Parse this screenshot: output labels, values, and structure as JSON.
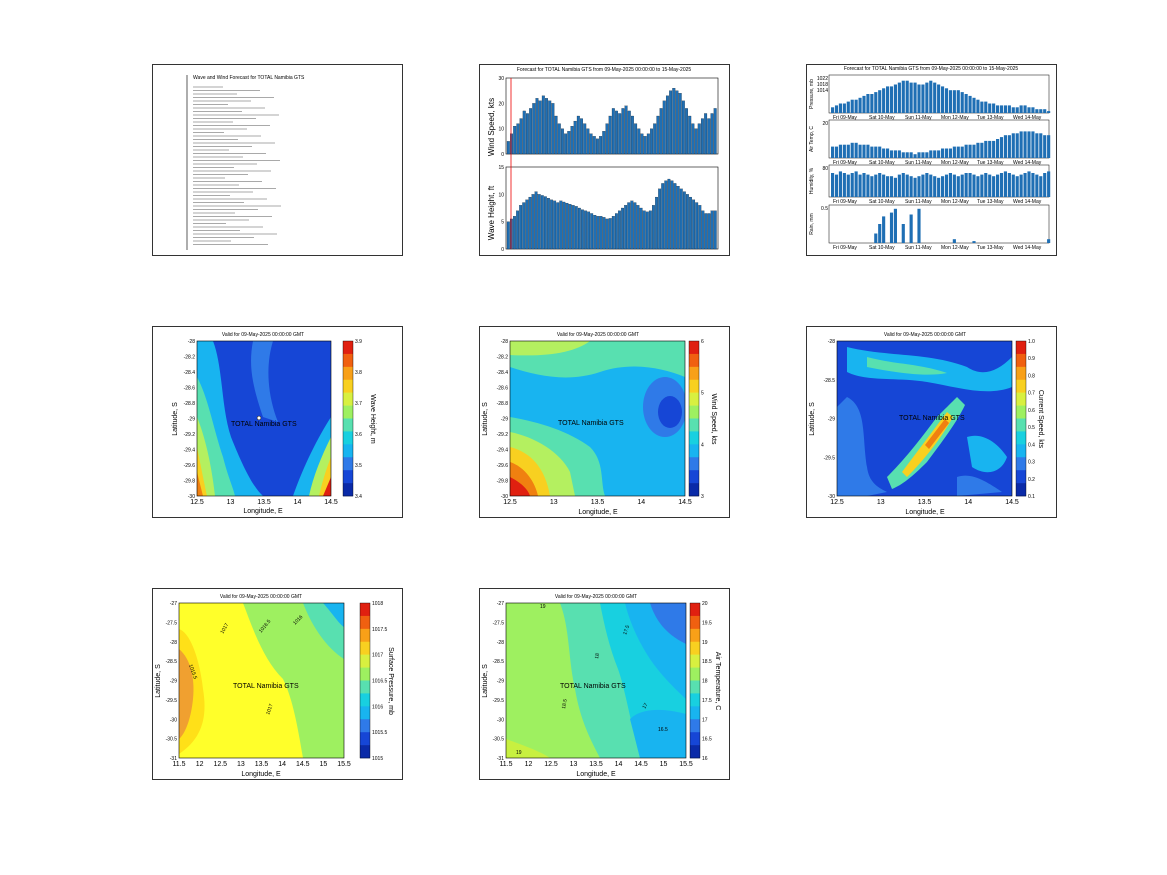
{
  "panels": {
    "p1_report": {
      "title": "Wave and Wind Forecast for TOTAL Namibia GTS",
      "lines": 46
    },
    "p2_timeseries": {
      "title": "Forecast for TOTAL Namibia GTS from 09-May-2025 00:00:00 to 15-May-2025",
      "top": {
        "ylabel": "Wind Speed, kts",
        "yticks": [
          "30",
          "20",
          "10",
          "0"
        ],
        "ylim": [
          0,
          30
        ]
      },
      "bottom": {
        "ylabel": "Wave Height, ft",
        "yticks": [
          "15",
          "10",
          "5",
          "0"
        ],
        "ylim": [
          0,
          15
        ]
      }
    },
    "p3_metocean": {
      "title": "Forecast for TOTAL Namibia GTS from 09-May-2025 00:00:00 to 15-May-2025",
      "rows": [
        {
          "ylabel": "Pressure, mb",
          "yticks": [
            "1022",
            "1018",
            "1014"
          ]
        },
        {
          "ylabel": "Air Temp, C",
          "yticks": [
            "20"
          ]
        },
        {
          "ylabel": "Humidity, %",
          "yticks": [
            "80"
          ]
        },
        {
          "ylabel": "Rain, mm",
          "yticks": [
            "0.5"
          ]
        }
      ],
      "days": [
        "Fri 09-May",
        "Sat 10-May",
        "Sun 11-May",
        "Mon 12-May",
        "Tue 13-May",
        "Wed 14-May"
      ]
    },
    "p4_waveheight": {
      "title": "Valid for 09-May-2025 00:00:00 GMT",
      "xlabel": "Longitude, E",
      "ylabel": "Latitude, S",
      "xticks": [
        "12.5",
        "13",
        "13.5",
        "14",
        "14.5"
      ],
      "yticks": [
        "-28",
        "-28.2",
        "-28.4",
        "-28.6",
        "-28.8",
        "-29",
        "-29.2",
        "-29.4",
        "-29.6",
        "-29.8",
        "-30"
      ],
      "cbar_label": "Wave Height, m",
      "cbar_ticks": [
        "3.9",
        "3.8",
        "3.7",
        "3.6",
        "3.5",
        "3.4"
      ],
      "site": "TOTAL Namibia GTS"
    },
    "p5_windspeed": {
      "title": "Valid for 09-May-2025 00:00:00 GMT",
      "xlabel": "Longitude, E",
      "ylabel": "Latitude, S",
      "xticks": [
        "12.5",
        "13",
        "13.5",
        "14",
        "14.5"
      ],
      "yticks": [
        "-28",
        "-28.2",
        "-28.4",
        "-28.6",
        "-28.8",
        "-29",
        "-29.2",
        "-29.4",
        "-29.6",
        "-29.8",
        "-30"
      ],
      "cbar_label": "Wind Speed, kts",
      "cbar_ticks": [
        "6",
        "5",
        "4",
        "3"
      ],
      "site": "TOTAL Namibia GTS"
    },
    "p6_current": {
      "title": "Valid for 09-May-2025 00:00:00 GMT",
      "xlabel": "Longitude, E",
      "ylabel": "Latitude, S",
      "xticks": [
        "12.5",
        "13",
        "13.5",
        "14",
        "14.5"
      ],
      "yticks": [
        "-28",
        "-28.5",
        "-29",
        "-29.5",
        "-30"
      ],
      "cbar_label": "Current Speed, kts",
      "cbar_ticks": [
        "1.0",
        "0.9",
        "0.8",
        "0.7",
        "0.6",
        "0.5",
        "0.4",
        "0.3",
        "0.2",
        "0.1"
      ],
      "site": "TOTAL Namibia GTS"
    },
    "p7_pressure": {
      "title": "Valid for 09-May-2025 00:00:00 GMT",
      "xlabel": "Longitude, E",
      "ylabel": "Latitude, S",
      "xticks": [
        "11.5",
        "12",
        "12.5",
        "13",
        "13.5",
        "14",
        "14.5",
        "15",
        "15.5"
      ],
      "yticks": [
        "-27",
        "-27.5",
        "-28",
        "-28.5",
        "-29",
        "-29.5",
        "-30",
        "-30.5",
        "-31"
      ],
      "cbar_label": "Surface Pressure, mb",
      "cbar_ticks": [
        "1018",
        "1017.5",
        "1017",
        "1016.5",
        "1016",
        "1015.5",
        "1015"
      ],
      "contour_labels": [
        "1017",
        "1016.5",
        "1016",
        "1015.5",
        "1017"
      ],
      "site": "TOTAL Namibia GTS"
    },
    "p8_airtemp": {
      "title": "Valid for 09-May-2025 00:00:00 GMT",
      "xlabel": "Longitude, E",
      "ylabel": "Latitude, S",
      "xticks": [
        "11.5",
        "12",
        "12.5",
        "13",
        "13.5",
        "14",
        "14.5",
        "15",
        "15.5"
      ],
      "yticks": [
        "-27",
        "-27.5",
        "-28",
        "-28.5",
        "-29",
        "-29.5",
        "-30",
        "-30.5",
        "-31"
      ],
      "cbar_label": "Air Temperature, C",
      "cbar_ticks": [
        "20",
        "19.5",
        "19",
        "18.5",
        "18",
        "17.5",
        "17",
        "16.5",
        "16"
      ],
      "contour_labels": [
        "19",
        "18.5",
        "18",
        "17.5",
        "17",
        "16.5",
        "19"
      ],
      "site": "TOTAL Namibia GTS"
    }
  },
  "chart_data": [
    {
      "type": "bar",
      "title": "Forecast for TOTAL Namibia GTS from 09-May-2025 00:00:00 to 15-May-2025",
      "ylabel": "Wind Speed, kts",
      "ylim": [
        0,
        30
      ],
      "values": [
        5,
        8,
        11,
        12,
        14,
        17,
        16,
        18,
        20,
        22,
        21,
        23,
        22,
        21,
        20,
        15,
        12,
        10,
        8,
        9,
        11,
        13,
        15,
        14,
        12,
        10,
        8,
        7,
        6,
        7,
        9,
        12,
        15,
        18,
        17,
        16,
        18,
        19,
        17,
        15,
        12,
        10,
        8,
        7,
        8,
        10,
        12,
        15,
        18,
        21,
        23,
        25,
        26,
        25,
        24,
        21,
        18,
        15,
        12,
        10,
        12,
        14,
        16,
        14,
        16,
        18
      ]
    },
    {
      "type": "bar",
      "ylabel": "Wave Height, ft",
      "ylim": [
        0,
        15
      ],
      "values": [
        5,
        5.5,
        6,
        7,
        8,
        8.5,
        9,
        9.5,
        10,
        10.5,
        10,
        9.8,
        9.6,
        9.3,
        9,
        8.8,
        8.5,
        8.8,
        8.6,
        8.4,
        8.2,
        8,
        7.8,
        7.5,
        7.2,
        7,
        6.8,
        6.5,
        6.2,
        6,
        6,
        5.8,
        5.5,
        5.6,
        6,
        6.5,
        7,
        7.5,
        8,
        8.5,
        8.8,
        8.5,
        8,
        7.5,
        7,
        6.8,
        7,
        8,
        9.5,
        11,
        12,
        12.5,
        12.8,
        12.5,
        12,
        11.5,
        11,
        10.5,
        10,
        9.5,
        9,
        8.5,
        8,
        7,
        6.5,
        6.5,
        7,
        7
      ]
    },
    {
      "type": "bar",
      "ylabel": "Pressure, mb",
      "values": [
        3,
        4,
        5,
        5,
        6,
        7,
        7,
        8,
        9,
        10,
        10,
        11,
        12,
        13,
        14,
        14,
        15,
        16,
        17,
        17,
        16,
        16,
        15,
        15,
        16,
        17,
        16,
        15,
        14,
        13,
        12,
        12,
        12,
        11,
        10,
        9,
        8,
        7,
        6,
        6,
        5,
        5,
        4,
        4,
        4,
        4,
        3,
        3,
        4,
        4,
        3,
        3,
        2,
        2,
        2,
        1
      ]
    },
    {
      "type": "bar",
      "ylabel": "Air Temp, C",
      "values": [
        6,
        6,
        7,
        7,
        7,
        8,
        8,
        7,
        7,
        7,
        6,
        6,
        6,
        5,
        5,
        4,
        4,
        4,
        3,
        3,
        3,
        2,
        3,
        3,
        3,
        4,
        4,
        4,
        5,
        5,
        5,
        6,
        6,
        6,
        7,
        7,
        7,
        8,
        8,
        9,
        9,
        9,
        10,
        11,
        12,
        12,
        13,
        13,
        14,
        14,
        14,
        14,
        13,
        13,
        12,
        12
      ]
    },
    {
      "type": "bar",
      "ylabel": "Humidity, %",
      "values": [
        15,
        14,
        16,
        15,
        14,
        15,
        16,
        14,
        15,
        14,
        13,
        14,
        15,
        14,
        13,
        13,
        12,
        14,
        15,
        14,
        13,
        12,
        13,
        14,
        15,
        14,
        13,
        12,
        13,
        14,
        15,
        14,
        13,
        14,
        15,
        15,
        14,
        13,
        14,
        15,
        14,
        13,
        14,
        15,
        16,
        15,
        14,
        13,
        14,
        15,
        16,
        15,
        14,
        13,
        15,
        16
      ]
    },
    {
      "type": "bar",
      "ylabel": "Rain, mm",
      "values": [
        0,
        0,
        0,
        0,
        0,
        0,
        0,
        0,
        0,
        0,
        0,
        5,
        10,
        14,
        0,
        16,
        18,
        0,
        10,
        0,
        15,
        0,
        18,
        0,
        0,
        0,
        0,
        0,
        0,
        0,
        0,
        2,
        0,
        0,
        0,
        0,
        1,
        0,
        0,
        0,
        0,
        0,
        0,
        0,
        0,
        0,
        0,
        0,
        0,
        0,
        0,
        0,
        0,
        0,
        0,
        2
      ]
    }
  ]
}
